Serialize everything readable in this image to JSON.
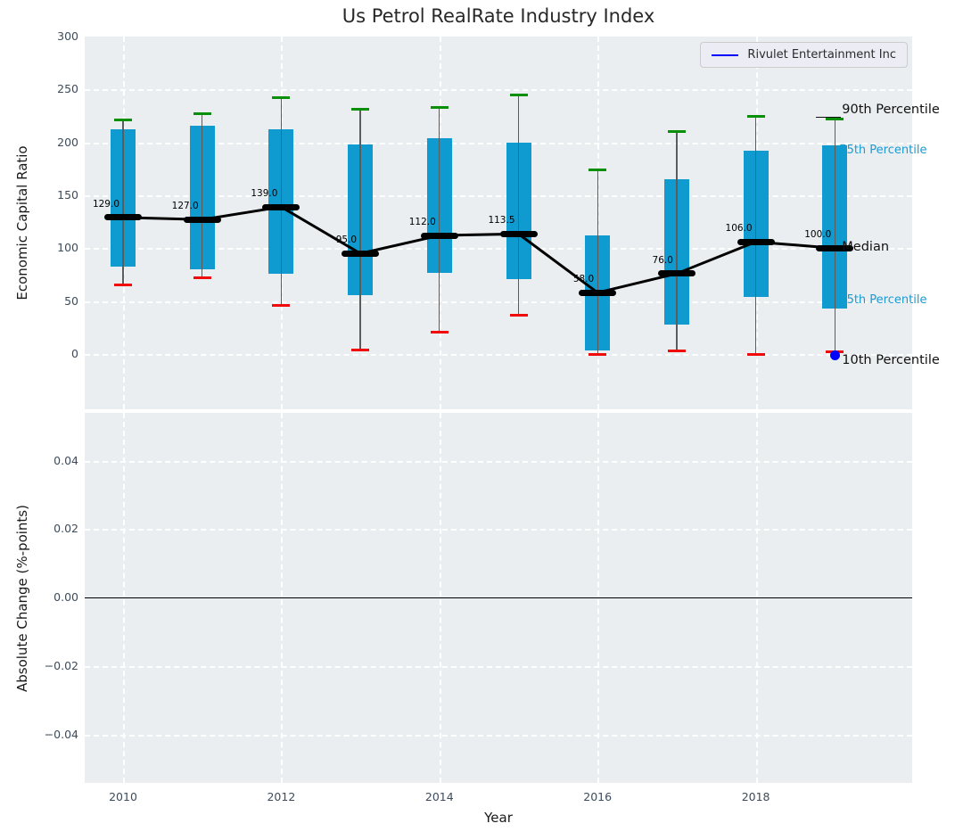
{
  "title": "Us Petrol RealRate Industry Index",
  "legend": {
    "label": "Rivulet Entertainment Inc",
    "line_color": "#0000ff"
  },
  "axes": {
    "xlabel": "Year",
    "xticks": [
      2010,
      2012,
      2014,
      2016,
      2018
    ],
    "top": {
      "ylabel": "Economic Capital Ratio",
      "yticks": [
        300,
        250,
        200,
        150,
        100,
        50,
        0
      ],
      "ylim": [
        -52,
        300
      ]
    },
    "bottom": {
      "ylabel": "Absolute Change (%-points)",
      "yticks": [
        {
          "label": "0.04",
          "v": 0.04
        },
        {
          "label": "0.02",
          "v": 0.02
        },
        {
          "label": "0.00",
          "v": 0
        },
        {
          "label": "−0.02",
          "v": -0.02
        },
        {
          "label": "−0.04",
          "v": -0.04
        }
      ],
      "ylim": [
        -0.054,
        0.054
      ]
    }
  },
  "chart_data": {
    "type": "boxplot",
    "title": "Us Petrol RealRate Industry Index",
    "xlabel": "Year",
    "ylabel": "Economic Capital Ratio",
    "grid": true,
    "years": [
      2010,
      2011,
      2012,
      2013,
      2014,
      2015,
      2016,
      2017,
      2018,
      2019
    ],
    "percentiles": [
      {
        "year": 2010,
        "p90": 221,
        "p75": 212,
        "median": 129.0,
        "p25": 83,
        "p10": 65
      },
      {
        "year": 2011,
        "p90": 227,
        "p75": 216,
        "median": 127.0,
        "p25": 80,
        "p10": 72
      },
      {
        "year": 2012,
        "p90": 242,
        "p75": 212,
        "median": 139.0,
        "p25": 76,
        "p10": 46
      },
      {
        "year": 2013,
        "p90": 231,
        "p75": 198,
        "median": 95.0,
        "p25": 56,
        "p10": 4
      },
      {
        "year": 2014,
        "p90": 233,
        "p75": 204,
        "median": 112.0,
        "p25": 77,
        "p10": 21
      },
      {
        "year": 2015,
        "p90": 245,
        "p75": 200,
        "median": 113.5,
        "p25": 71,
        "p10": 37
      },
      {
        "year": 2016,
        "p90": 174,
        "p75": 112,
        "median": 58.0,
        "p25": 3,
        "p10": 0
      },
      {
        "year": 2017,
        "p90": 210,
        "p75": 165,
        "median": 76.0,
        "p25": 28,
        "p10": 3
      },
      {
        "year": 2018,
        "p90": 225,
        "p75": 192,
        "median": 106.0,
        "p25": 54,
        "p10": 0
      },
      {
        "year": 2019,
        "p90": 222,
        "p75": 197,
        "median": 100.0,
        "p25": 43,
        "p10": 2
      }
    ],
    "company_series": {
      "name": "Rivulet Entertainment Inc",
      "points": [
        {
          "year": 2019,
          "value": 0
        }
      ]
    },
    "annotations": [
      {
        "label": "90th Percentile",
        "attach": "p90",
        "style": "black"
      },
      {
        "label": "75th Percentile",
        "attach": "p75",
        "style": "cyan"
      },
      {
        "label": "Median",
        "attach": "median",
        "style": "black"
      },
      {
        "label": "25th Percentile",
        "attach": "p25",
        "style": "cyan"
      },
      {
        "label": "10th Percentile",
        "attach": "p10",
        "style": "black"
      }
    ]
  },
  "colors": {
    "box": "#0f9bd0",
    "whisker": "#5c5c5c",
    "cap_high": "#0a8f0a",
    "cap_low": "#f10a0a",
    "median": "#000000",
    "company": "#0000ff",
    "cyan_label": "#1a9cd3",
    "plot_bg": "#eaeef0",
    "grid": "#ffffff"
  }
}
